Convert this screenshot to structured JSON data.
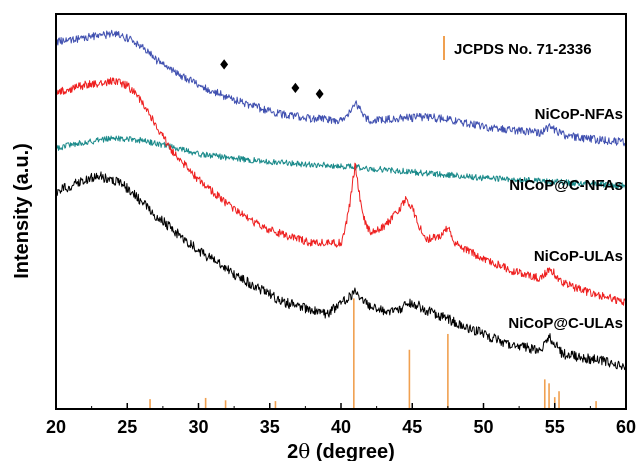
{
  "chart_data": {
    "type": "line",
    "xlabel_main": "2",
    "xlabel_theta": "θ",
    "xlabel_rest": " (degree)",
    "ylabel": "Intensity (a.u.)",
    "xlim": [
      20,
      60
    ],
    "xticks": [
      "20",
      "25",
      "30",
      "35",
      "40",
      "45",
      "50",
      "55",
      "60"
    ],
    "legend": {
      "label": "JCPDS No. 71-2336",
      "color": "#f0a050",
      "placement": "top-right"
    },
    "colors": {
      "NiCoP-NFAs": "#4050b0",
      "NiCoP@C-NFAs": "#1a8a8a",
      "NiCoP-ULAs": "#ee2020",
      "NiCoP@C-ULAs": "#000000",
      "reference": "#f0a050"
    },
    "series": [
      {
        "name": "NiCoP-NFAs",
        "label": "NiCoP-NFAs",
        "noise": 4,
        "x": [
          20,
          22,
          24,
          25,
          26,
          27,
          28,
          30,
          32,
          34,
          36,
          38,
          40,
          40.5,
          41,
          41.5,
          42,
          44,
          46,
          48,
          50,
          52,
          54,
          54.7,
          55.5,
          57,
          60
        ],
        "y": [
          0.93,
          0.94,
          0.95,
          0.94,
          0.92,
          0.885,
          0.86,
          0.82,
          0.79,
          0.765,
          0.745,
          0.735,
          0.73,
          0.745,
          0.78,
          0.745,
          0.73,
          0.735,
          0.74,
          0.73,
          0.715,
          0.705,
          0.7,
          0.715,
          0.695,
          0.685,
          0.675
        ]
      },
      {
        "name": "NiCoP@C-NFAs",
        "label": "NiCoP@C-NFAs",
        "noise": 3,
        "x": [
          20,
          22,
          24,
          26,
          28,
          30,
          35,
          40,
          45,
          50,
          55,
          60
        ],
        "y": [
          0.66,
          0.675,
          0.685,
          0.68,
          0.665,
          0.645,
          0.625,
          0.615,
          0.6,
          0.585,
          0.575,
          0.565
        ]
      },
      {
        "name": "NiCoP-ULAs",
        "label": "NiCoP-ULAs",
        "noise": 4,
        "x": [
          20,
          22,
          24,
          25,
          26,
          27,
          28,
          30,
          32,
          34,
          36,
          38,
          40,
          40.5,
          41,
          41.5,
          42,
          43,
          44,
          44.5,
          45,
          45.5,
          46,
          47,
          47.5,
          48,
          50,
          52,
          54,
          54.7,
          55.5,
          57,
          60
        ],
        "y": [
          0.8,
          0.82,
          0.83,
          0.82,
          0.78,
          0.72,
          0.66,
          0.58,
          0.52,
          0.47,
          0.44,
          0.42,
          0.42,
          0.49,
          0.62,
          0.49,
          0.45,
          0.46,
          0.5,
          0.53,
          0.51,
          0.46,
          0.43,
          0.44,
          0.46,
          0.42,
          0.38,
          0.35,
          0.33,
          0.355,
          0.32,
          0.3,
          0.27
        ]
      },
      {
        "name": "NiCoP@C-ULAs",
        "label": "NiCoP@C-ULAs",
        "noise": 5,
        "x": [
          20,
          22,
          23,
          24,
          25,
          27,
          30,
          33,
          36,
          39,
          40.5,
          41,
          42,
          43,
          44,
          45,
          46,
          48,
          50,
          52,
          54,
          54.7,
          55.5,
          57,
          60
        ],
        "y": [
          0.55,
          0.58,
          0.59,
          0.58,
          0.56,
          0.49,
          0.4,
          0.33,
          0.27,
          0.24,
          0.28,
          0.3,
          0.26,
          0.25,
          0.25,
          0.27,
          0.25,
          0.22,
          0.19,
          0.16,
          0.15,
          0.18,
          0.14,
          0.13,
          0.11
        ]
      }
    ],
    "markers": [
      {
        "symbol": "♦",
        "x": 31.8,
        "y": 0.86
      },
      {
        "symbol": "♦",
        "x": 36.8,
        "y": 0.8
      },
      {
        "symbol": "♦",
        "x": 38.5,
        "y": 0.785
      }
    ],
    "reference_lines": [
      {
        "x": 26.6,
        "h": 0.025
      },
      {
        "x": 30.5,
        "h": 0.028
      },
      {
        "x": 31.9,
        "h": 0.022
      },
      {
        "x": 35.4,
        "h": 0.02
      },
      {
        "x": 40.9,
        "h": 0.28
      },
      {
        "x": 44.8,
        "h": 0.15
      },
      {
        "x": 47.5,
        "h": 0.19
      },
      {
        "x": 54.3,
        "h": 0.075
      },
      {
        "x": 54.6,
        "h": 0.065
      },
      {
        "x": 55.0,
        "h": 0.03
      },
      {
        "x": 55.3,
        "h": 0.045
      },
      {
        "x": 57.9,
        "h": 0.02
      }
    ]
  }
}
